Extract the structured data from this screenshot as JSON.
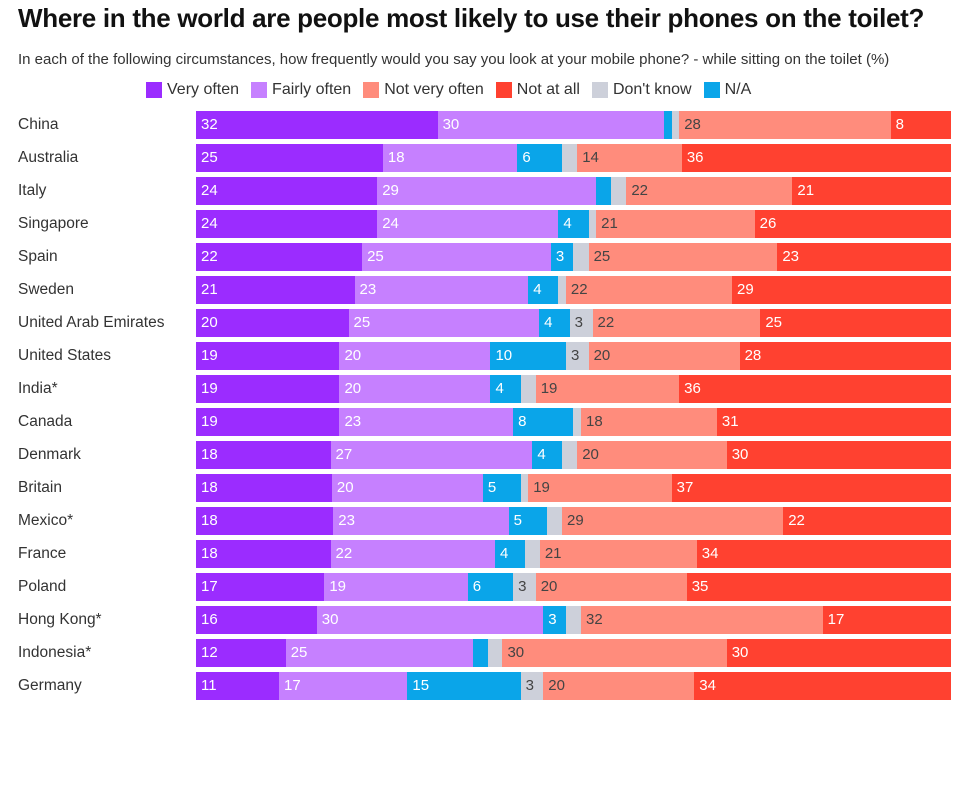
{
  "title": "Where in the world are people most likely to use their phones on the toilet?",
  "subtitle": "In each of the following circumstances, how frequently would you say you look at your mobile phone? - while sitting on the toilet (%)",
  "chart_data": {
    "type": "bar",
    "orientation": "horizontal",
    "stacked": true,
    "legend_position": "top",
    "categories": [
      "China",
      "Australia",
      "Italy",
      "Singapore",
      "Spain",
      "Sweden",
      "United Arab Emirates",
      "United States",
      "India*",
      "Canada",
      "Denmark",
      "Britain",
      "Mexico*",
      "France",
      "Poland",
      "Hong Kong*",
      "Indonesia*",
      "Germany"
    ],
    "series": [
      {
        "name": "Very often",
        "color": "#9b2cff",
        "label_color": "#ffffff",
        "values": [
          32,
          25,
          24,
          24,
          22,
          21,
          20,
          19,
          19,
          19,
          18,
          18,
          18,
          18,
          17,
          16,
          12,
          11
        ]
      },
      {
        "name": "Fairly often",
        "color": "#c680ff",
        "label_color": "#ffffff",
        "values": [
          30,
          18,
          29,
          24,
          25,
          23,
          25,
          20,
          20,
          23,
          27,
          20,
          23,
          22,
          19,
          30,
          25,
          17
        ]
      },
      {
        "name": "N/A",
        "color": "#0aa5e9",
        "label_color": "#ffffff",
        "values": [
          1,
          6,
          2,
          4,
          3,
          4,
          4,
          10,
          4,
          8,
          4,
          5,
          5,
          4,
          6,
          3,
          2,
          15
        ]
      },
      {
        "name": "Don't know",
        "color": "#cdd0da",
        "label_color": "#444444",
        "values": [
          1,
          2,
          2,
          1,
          2,
          1,
          3,
          3,
          2,
          1,
          2,
          1,
          2,
          2,
          3,
          2,
          2,
          3
        ]
      },
      {
        "name": "Not very often",
        "color": "#ff8c7c",
        "label_color": "#444444",
        "values": [
          28,
          14,
          22,
          21,
          25,
          22,
          22,
          20,
          19,
          18,
          20,
          19,
          29,
          21,
          20,
          32,
          30,
          20
        ]
      },
      {
        "name": "Not at all",
        "color": "#ff4130",
        "label_color": "#ffffff",
        "values": [
          8,
          36,
          21,
          26,
          23,
          29,
          25,
          28,
          36,
          31,
          30,
          37,
          22,
          34,
          35,
          17,
          30,
          34
        ]
      }
    ],
    "legend_order": [
      "Very often",
      "Fairly often",
      "Not very often",
      "Not at all",
      "Don't know",
      "N/A"
    ]
  }
}
